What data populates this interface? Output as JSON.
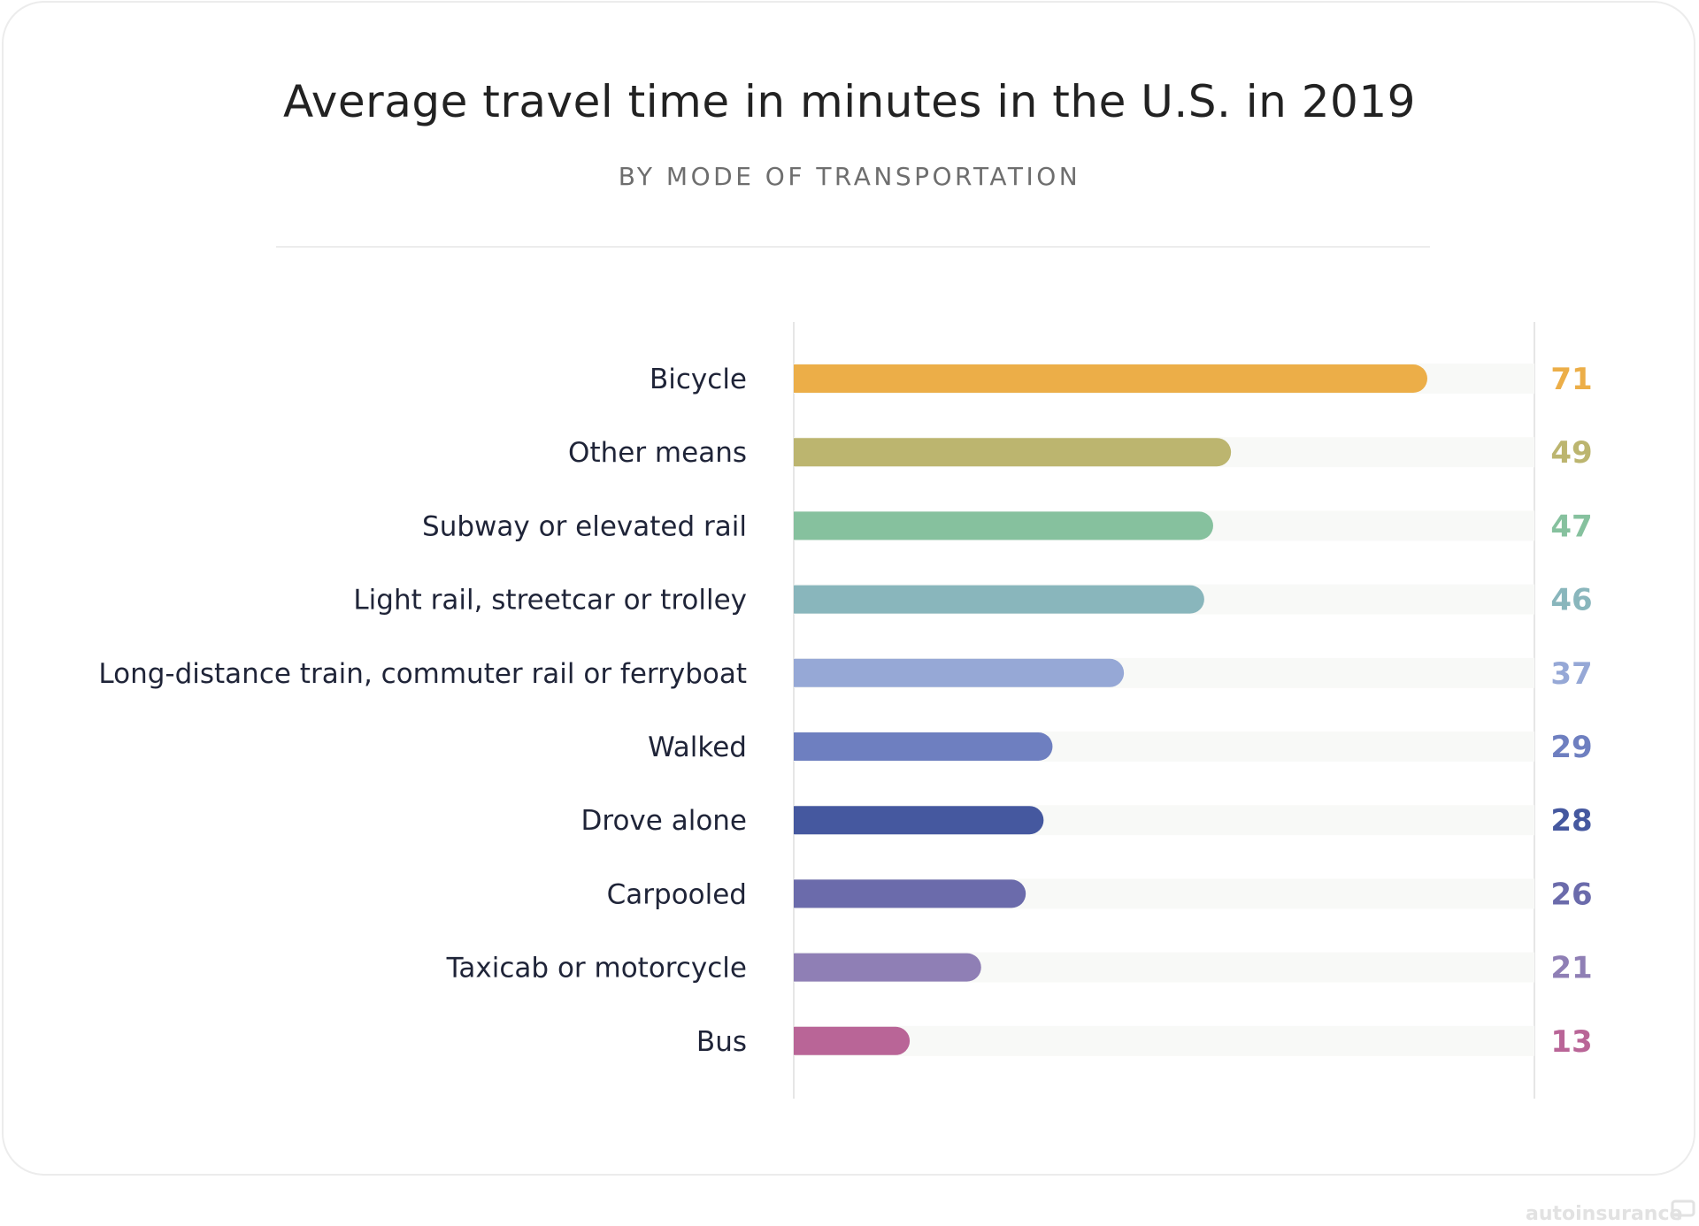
{
  "title": "Average travel time in minutes in the U.S. in 2019",
  "subtitle": "BY MODE OF TRANSPORTATION",
  "watermark": "autoinsurance",
  "chart_data": {
    "type": "bar",
    "orientation": "horizontal",
    "title": "Average travel time in minutes in the U.S. in 2019",
    "subtitle": "BY MODE OF TRANSPORTATION",
    "categories": [
      "Bicycle",
      "Other means",
      "Subway or elevated rail",
      "Light rail, streetcar or trolley",
      "Long-distance train, commuter rail or ferryboat",
      "Walked",
      "Drove alone",
      "Carpooled",
      "Taxicab or motorcycle",
      "Bus"
    ],
    "values": [
      71,
      49,
      47,
      46,
      37,
      29,
      28,
      26,
      21,
      13
    ],
    "colors": [
      "#ecae48",
      "#bcb56f",
      "#86c19e",
      "#89b6bc",
      "#96a8d6",
      "#6e7fc0",
      "#45589f",
      "#6b6bab",
      "#8f7fb5",
      "#b96597"
    ],
    "xlim": [
      0,
      83
    ],
    "grid": false,
    "legend": "none",
    "value_labels": "right"
  }
}
